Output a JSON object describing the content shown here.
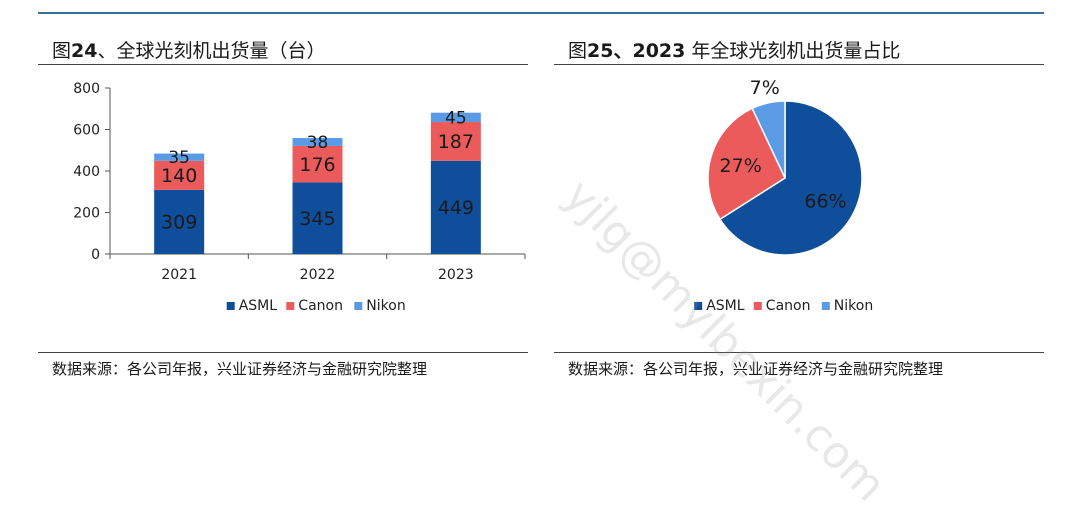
{
  "watermark": "yjlg@mylbexin.com",
  "colors": {
    "ASML": "#0f4e9b",
    "Canon": "#ec5b5b",
    "Nikon": "#5b9be6"
  },
  "left": {
    "fig_label": "图",
    "fig_num": "24",
    "title": "、全球光刻机出货量（台）",
    "source": "数据来源：各公司年报，兴业证券经济与金融研究院整理"
  },
  "right": {
    "fig_label": "图",
    "fig_num": "25",
    "title_year": "、2023",
    "title": " 年全球光刻机出货量占比",
    "source": "数据来源：各公司年报，兴业证券经济与金融研究院整理"
  },
  "chart_data": [
    {
      "type": "bar",
      "stacked": true,
      "title": "全球光刻机出货量（台）",
      "categories": [
        "2021",
        "2022",
        "2023"
      ],
      "series": [
        {
          "name": "ASML",
          "values": [
            309,
            345,
            449
          ]
        },
        {
          "name": "Canon",
          "values": [
            140,
            176,
            187
          ]
        },
        {
          "name": "Nikon",
          "values": [
            35,
            38,
            45
          ]
        }
      ],
      "yticks": [
        0,
        200,
        400,
        600,
        800
      ],
      "ylim": [
        0,
        800
      ],
      "legend": "bottom",
      "grid": false
    },
    {
      "type": "pie",
      "title": "2023 年全球光刻机出货量占比",
      "labels": [
        "ASML",
        "Canon",
        "Nikon"
      ],
      "values": [
        66,
        27,
        7
      ],
      "value_labels": [
        "66%",
        "27%",
        "7%"
      ],
      "legend": "bottom"
    }
  ]
}
